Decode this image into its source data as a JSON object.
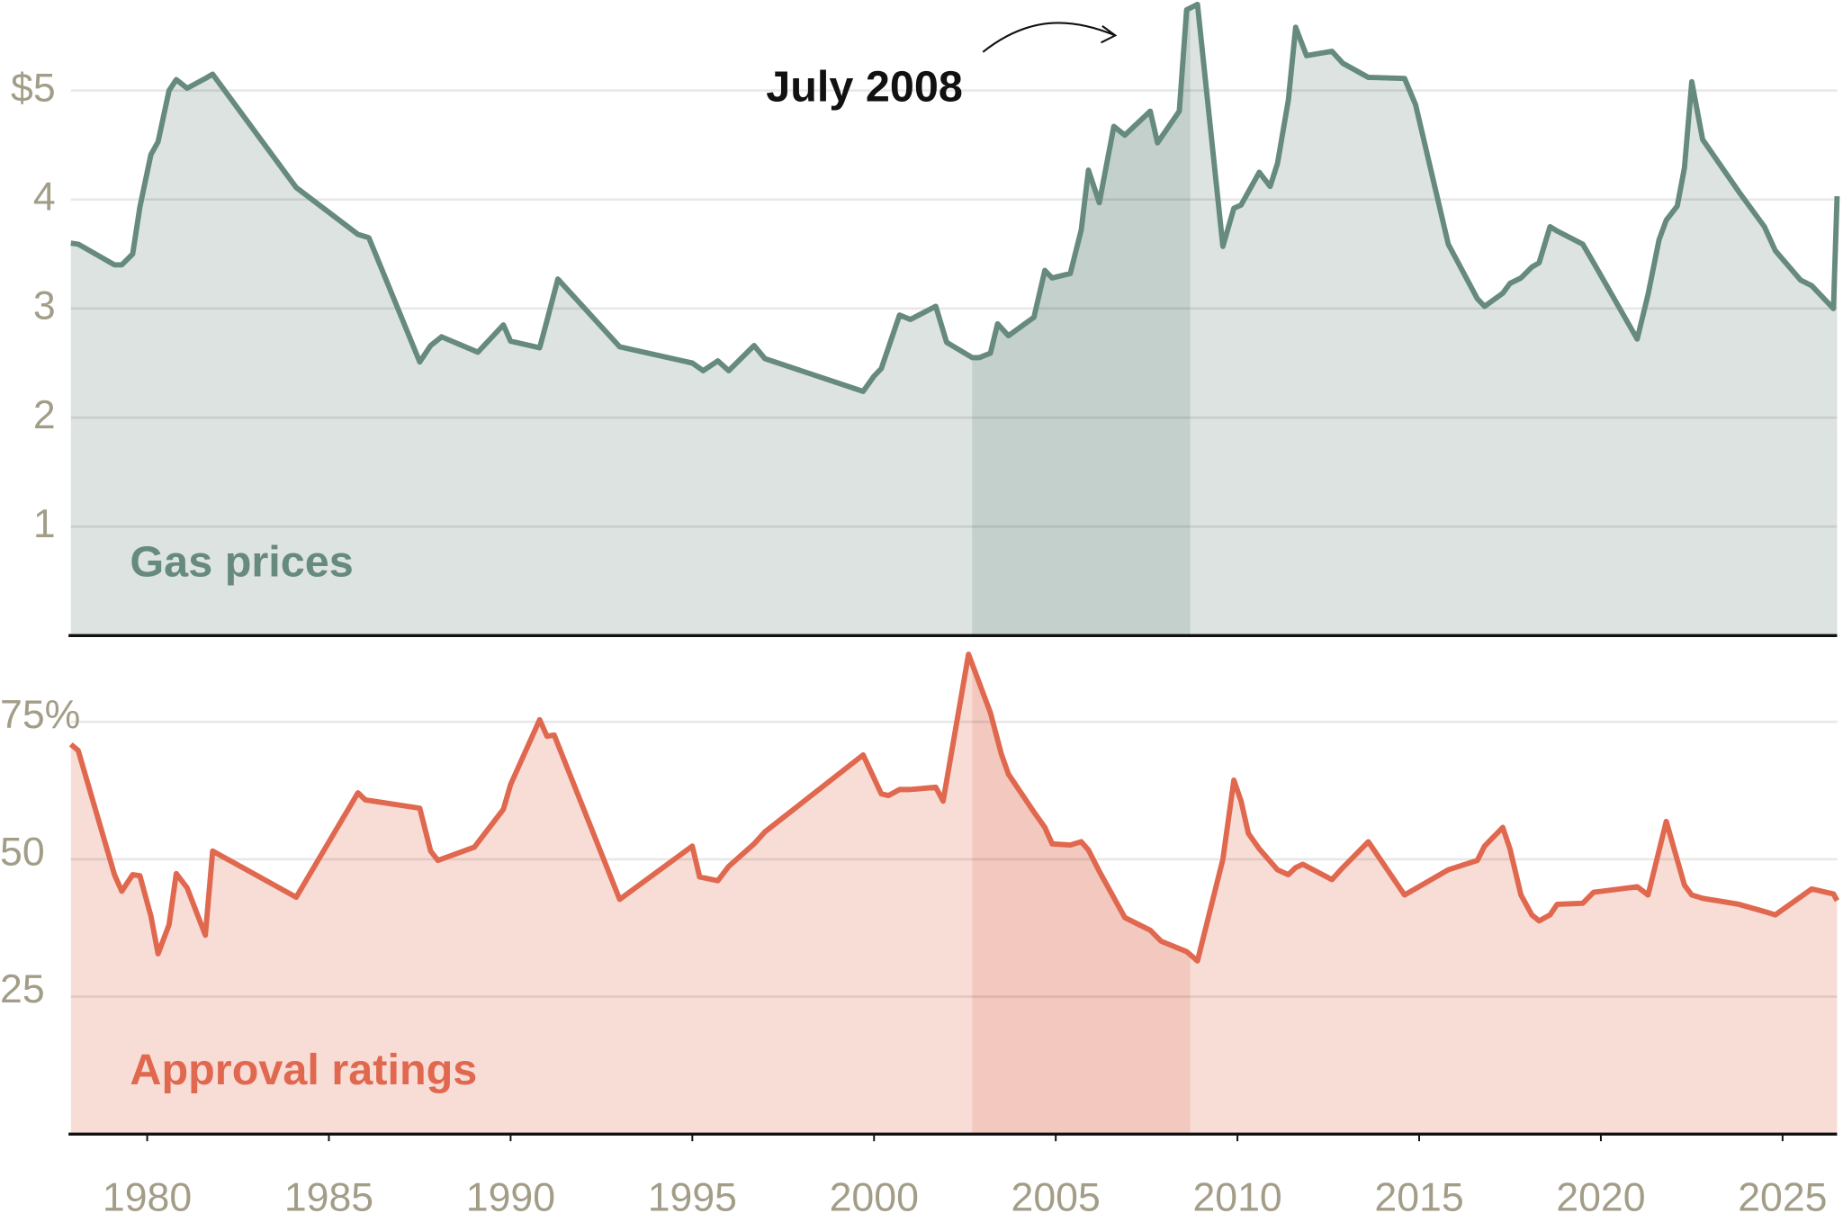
{
  "chart_data": [
    {
      "type": "line",
      "area": true,
      "grid": true,
      "annotation": "July 2008",
      "highlight": [
        2002.7,
        2008.7
      ],
      "xlim": [
        1977.9,
        2026.5
      ],
      "ylim": [
        0,
        5.83
      ],
      "yticks": [
        1,
        2,
        3,
        4,
        {
          "value": 5,
          "label": "$5"
        }
      ],
      "x": [
        1977.9,
        1978.1,
        1979.1,
        1979.3,
        1979.6,
        1979.8,
        1980.1,
        1980.3,
        1980.6,
        1980.8,
        1981.1,
        1981.6,
        1981.8,
        1984.1,
        1985.8,
        1986.1,
        1987.5,
        1987.8,
        1988.1,
        1989.1,
        1989.8,
        1990.0,
        1990.8,
        1991.0,
        1991.3,
        1993.0,
        1995.0,
        1995.3,
        1995.7,
        1996.0,
        1996.7,
        1997.0,
        1999.7,
        2000.0,
        2000.2,
        2000.7,
        2001.0,
        2001.7,
        2002.0,
        2002.7,
        2002.9,
        2003.2,
        2003.4,
        2003.7,
        2004.4,
        2004.7,
        2004.9,
        2005.4,
        2005.7,
        2005.9,
        2006.2,
        2006.6,
        2006.9,
        2007.6,
        2007.8,
        2008.4,
        2008.6,
        2008.9,
        2009.6,
        2009.9,
        2010.1,
        2010.6,
        2010.9,
        2011.1,
        2011.4,
        2011.6,
        2011.9,
        2012.6,
        2012.9,
        2013.6,
        2014.6,
        2014.9,
        2015.8,
        2016.6,
        2016.8,
        2017.3,
        2017.5,
        2017.8,
        2018.1,
        2018.3,
        2018.6,
        2018.8,
        2019.5,
        2019.8,
        2021.0,
        2021.3,
        2021.6,
        2021.8,
        2022.1,
        2022.3,
        2022.5,
        2022.8,
        2023.8,
        2024.5,
        2024.8,
        2025.5,
        2025.8,
        2026.4,
        2026.5
      ],
      "series": [
        {
          "name": "Gas prices",
          "color": "#668a7d",
          "area_color": "#dde3e1",
          "highlight_color": "#c4d0cc",
          "values": [
            3.6,
            3.59,
            3.4,
            3.4,
            3.5,
            3.93,
            4.41,
            4.53,
            5.0,
            5.1,
            5.02,
            5.11,
            5.15,
            4.11,
            3.68,
            3.65,
            2.51,
            2.66,
            2.74,
            2.6,
            2.85,
            2.7,
            2.64,
            2.89,
            3.27,
            2.65,
            2.5,
            2.43,
            2.52,
            2.43,
            2.66,
            2.54,
            2.24,
            2.38,
            2.45,
            2.94,
            2.9,
            3.02,
            2.69,
            2.55,
            2.55,
            2.59,
            2.86,
            2.75,
            2.92,
            3.35,
            3.28,
            3.32,
            3.72,
            4.27,
            3.97,
            4.67,
            4.59,
            4.81,
            4.52,
            4.81,
            5.74,
            5.79,
            3.57,
            3.92,
            3.95,
            4.25,
            4.12,
            4.33,
            4.91,
            5.58,
            5.32,
            5.36,
            5.25,
            5.12,
            5.11,
            4.87,
            3.59,
            3.09,
            3.02,
            3.14,
            3.23,
            3.28,
            3.38,
            3.42,
            3.75,
            3.71,
            3.59,
            3.42,
            2.72,
            3.13,
            3.63,
            3.81,
            3.94,
            4.29,
            5.08,
            4.55,
            4.07,
            3.75,
            3.53,
            3.26,
            3.21,
            3.0,
            4.03
          ]
        }
      ]
    },
    {
      "type": "line",
      "area": true,
      "grid": true,
      "highlight": [
        2002.7,
        2008.7
      ],
      "xlim": [
        1977.9,
        2026.5
      ],
      "ylim": [
        0,
        89.2
      ],
      "yticks": [
        25,
        50,
        {
          "value": 75,
          "label": "75%"
        }
      ],
      "xticks": [
        1980,
        1985,
        1990,
        1995,
        2000,
        2005,
        2010,
        2015,
        2020,
        2025
      ],
      "x": [
        1977.9,
        1978.1,
        1979.1,
        1979.3,
        1979.6,
        1979.8,
        1980.1,
        1980.3,
        1980.6,
        1980.8,
        1981.1,
        1981.6,
        1981.8,
        1984.1,
        1985.8,
        1986.0,
        1987.5,
        1987.8,
        1988.0,
        1989.0,
        1989.8,
        1990.0,
        1990.8,
        1991.0,
        1991.2,
        1993.0,
        1995.0,
        1995.2,
        1995.7,
        1996.0,
        1996.7,
        1997.0,
        1999.7,
        2000.2,
        2000.4,
        2000.7,
        2001.0,
        2001.7,
        2001.9,
        2002.6,
        2003.2,
        2003.5,
        2003.7,
        2004.4,
        2004.7,
        2004.9,
        2005.4,
        2005.7,
        2005.9,
        2006.2,
        2006.9,
        2007.6,
        2007.9,
        2008.6,
        2008.9,
        2009.6,
        2009.9,
        2010.1,
        2010.3,
        2010.6,
        2011.1,
        2011.4,
        2011.6,
        2011.8,
        2012.6,
        2012.9,
        2013.6,
        2014.6,
        2015.8,
        2016.6,
        2016.8,
        2017.3,
        2017.5,
        2017.8,
        2018.1,
        2018.3,
        2018.6,
        2018.8,
        2019.5,
        2019.8,
        2021.0,
        2021.3,
        2021.8,
        2022.3,
        2022.5,
        2022.8,
        2023.8,
        2024.5,
        2024.8,
        2025.8,
        2026.4,
        2026.5
      ],
      "series": [
        {
          "name": "Approval ratings",
          "color": "#e0684f",
          "area_color": "#f8dcd6",
          "highlight_color": "#f2c8bf",
          "values": [
            70.9,
            69.8,
            47.2,
            44.2,
            47.2,
            47.0,
            39.7,
            32.8,
            38.1,
            47.4,
            44.8,
            36.2,
            51.5,
            43.1,
            62.1,
            60.8,
            59.3,
            51.5,
            49.8,
            52.2,
            59.1,
            63.6,
            75.4,
            72.4,
            72.6,
            42.7,
            52.4,
            46.8,
            46.1,
            48.7,
            52.8,
            55.0,
            69.0,
            61.9,
            61.6,
            62.7,
            62.7,
            63.1,
            60.6,
            87.3,
            76.7,
            69.2,
            65.5,
            58.6,
            55.8,
            52.8,
            52.6,
            53.2,
            51.7,
            47.8,
            39.4,
            37.1,
            35.1,
            33.2,
            31.5,
            50.0,
            64.4,
            60.6,
            54.7,
            51.9,
            48.1,
            47.2,
            48.5,
            49.1,
            46.3,
            48.5,
            53.2,
            43.5,
            48.1,
            49.8,
            52.4,
            55.8,
            51.9,
            43.5,
            39.9,
            38.8,
            39.9,
            41.8,
            42.0,
            44.0,
            45.0,
            43.5,
            56.9,
            45.3,
            43.5,
            42.9,
            41.8,
            40.5,
            39.9,
            44.6,
            43.7,
            42.5
          ]
        }
      ]
    }
  ]
}
